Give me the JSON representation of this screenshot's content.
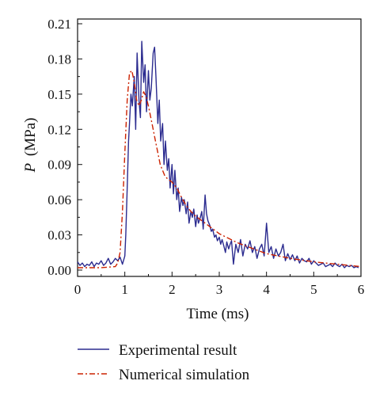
{
  "chart_data": {
    "type": "line",
    "title": "",
    "xlabel": "Time (ms)",
    "ylabel": {
      "symbol": "P",
      "unit": "(MPa)"
    },
    "xlim": [
      0,
      6
    ],
    "ylim": [
      0,
      0.21
    ],
    "xticks": [
      "0",
      "1",
      "2",
      "3",
      "4",
      "5",
      "6"
    ],
    "yticks": [
      "0.00",
      "0.03",
      "0.06",
      "0.09",
      "0.12",
      "0.15",
      "0.18",
      "0.21"
    ],
    "grid": false,
    "legend_position": "bottom",
    "series": [
      {
        "name": "Experimental result",
        "color": "#2b2b8f",
        "style": "solid",
        "x": [
          0.0,
          0.05,
          0.1,
          0.15,
          0.2,
          0.25,
          0.3,
          0.35,
          0.4,
          0.45,
          0.5,
          0.55,
          0.6,
          0.65,
          0.7,
          0.75,
          0.8,
          0.85,
          0.9,
          0.95,
          1.0,
          1.02,
          1.05,
          1.08,
          1.1,
          1.13,
          1.16,
          1.2,
          1.23,
          1.26,
          1.3,
          1.33,
          1.36,
          1.4,
          1.43,
          1.46,
          1.5,
          1.53,
          1.56,
          1.6,
          1.63,
          1.66,
          1.7,
          1.73,
          1.76,
          1.8,
          1.83,
          1.86,
          1.9,
          1.93,
          1.96,
          2.0,
          2.03,
          2.06,
          2.1,
          2.13,
          2.16,
          2.2,
          2.23,
          2.26,
          2.3,
          2.33,
          2.36,
          2.4,
          2.43,
          2.46,
          2.5,
          2.53,
          2.56,
          2.6,
          2.63,
          2.66,
          2.7,
          2.73,
          2.76,
          2.8,
          2.83,
          2.86,
          2.9,
          2.93,
          2.96,
          3.0,
          3.03,
          3.06,
          3.1,
          3.13,
          3.16,
          3.2,
          3.23,
          3.26,
          3.3,
          3.35,
          3.4,
          3.45,
          3.5,
          3.55,
          3.6,
          3.65,
          3.7,
          3.75,
          3.8,
          3.85,
          3.9,
          3.95,
          4.0,
          4.05,
          4.1,
          4.15,
          4.2,
          4.25,
          4.3,
          4.35,
          4.4,
          4.45,
          4.5,
          4.55,
          4.6,
          4.65,
          4.7,
          4.75,
          4.8,
          4.85,
          4.9,
          4.95,
          5.0,
          5.05,
          5.1,
          5.15,
          5.2,
          5.25,
          5.3,
          5.35,
          5.4,
          5.45,
          5.5,
          5.55,
          5.6,
          5.65,
          5.7,
          5.75,
          5.8,
          5.85,
          5.9,
          5.95
        ],
        "y": [
          0.007,
          0.004,
          0.006,
          0.003,
          0.005,
          0.004,
          0.007,
          0.003,
          0.006,
          0.005,
          0.008,
          0.004,
          0.006,
          0.01,
          0.005,
          0.007,
          0.01,
          0.008,
          0.011,
          0.005,
          0.012,
          0.03,
          0.07,
          0.11,
          0.125,
          0.15,
          0.14,
          0.165,
          0.12,
          0.185,
          0.145,
          0.13,
          0.195,
          0.16,
          0.175,
          0.135,
          0.17,
          0.145,
          0.155,
          0.185,
          0.19,
          0.165,
          0.125,
          0.145,
          0.11,
          0.125,
          0.09,
          0.11,
          0.085,
          0.095,
          0.07,
          0.09,
          0.065,
          0.085,
          0.06,
          0.07,
          0.05,
          0.062,
          0.055,
          0.06,
          0.048,
          0.058,
          0.04,
          0.05,
          0.045,
          0.052,
          0.037,
          0.047,
          0.04,
          0.045,
          0.05,
          0.035,
          0.064,
          0.048,
          0.042,
          0.038,
          0.033,
          0.035,
          0.028,
          0.03,
          0.025,
          0.028,
          0.022,
          0.026,
          0.02,
          0.015,
          0.024,
          0.018,
          0.022,
          0.025,
          0.005,
          0.022,
          0.015,
          0.026,
          0.012,
          0.022,
          0.018,
          0.025,
          0.015,
          0.02,
          0.01,
          0.018,
          0.022,
          0.012,
          0.04,
          0.015,
          0.02,
          0.01,
          0.018,
          0.012,
          0.015,
          0.022,
          0.008,
          0.014,
          0.009,
          0.013,
          0.008,
          0.012,
          0.006,
          0.01,
          0.008,
          0.007,
          0.01,
          0.005,
          0.008,
          0.006,
          0.004,
          0.005,
          0.006,
          0.003,
          0.004,
          0.005,
          0.003,
          0.006,
          0.004,
          0.003,
          0.005,
          0.002,
          0.004,
          0.003,
          0.004,
          0.002,
          0.003,
          0.002
        ]
      },
      {
        "name": "Numerical simulation",
        "color": "#cc2200",
        "style": "dashdot",
        "x": [
          0.0,
          0.5,
          0.8,
          0.85,
          0.9,
          0.95,
          1.0,
          1.05,
          1.1,
          1.15,
          1.2,
          1.25,
          1.3,
          1.35,
          1.4,
          1.45,
          1.5,
          1.55,
          1.6,
          1.65,
          1.7,
          1.75,
          1.8,
          1.85,
          1.9,
          2.0,
          2.1,
          2.2,
          2.3,
          2.4,
          2.5,
          2.6,
          2.8,
          3.0,
          3.2,
          3.4,
          3.6,
          3.8,
          4.0,
          4.5,
          5.0,
          5.5,
          6.0
        ],
        "y": [
          0.002,
          0.002,
          0.003,
          0.006,
          0.015,
          0.05,
          0.1,
          0.145,
          0.168,
          0.17,
          0.16,
          0.145,
          0.14,
          0.145,
          0.152,
          0.148,
          0.14,
          0.13,
          0.12,
          0.11,
          0.1,
          0.09,
          0.085,
          0.08,
          0.078,
          0.075,
          0.07,
          0.062,
          0.055,
          0.05,
          0.046,
          0.043,
          0.037,
          0.031,
          0.027,
          0.023,
          0.02,
          0.017,
          0.014,
          0.01,
          0.007,
          0.005,
          0.003
        ]
      }
    ]
  }
}
